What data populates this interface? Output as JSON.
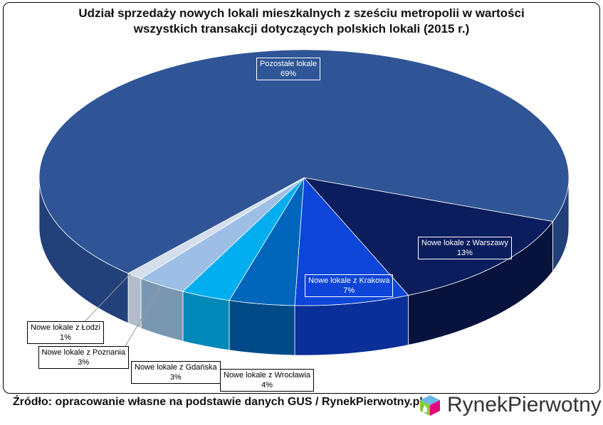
{
  "chart_data": {
    "type": "pie",
    "title_lines": [
      "Udział sprzedaży nowych lokali mieszkalnych z sześciu metropolii w wartości",
      "wszystkich transakcji dotyczących polskich lokali (2015 r.)"
    ],
    "slices": [
      {
        "name": "Nowe lokale z Warszawy",
        "value": 13,
        "label": "13%",
        "color": "#0b1d5c",
        "side": "#07123d",
        "style": "in"
      },
      {
        "name": "Nowe lokale z Krakowa",
        "value": 7,
        "label": "7%",
        "color": "#0d45d8",
        "side": "#0a2f98",
        "style": "in"
      },
      {
        "name": "Nowe lokale z Wrocławia",
        "value": 4,
        "label": "4%",
        "color": "#0066bb",
        "side": "#004a88",
        "style": "out"
      },
      {
        "name": "Nowe lokale z Gdańska",
        "value": 3,
        "label": "3%",
        "color": "#00aeef",
        "side": "#0088b8",
        "style": "out"
      },
      {
        "name": "Nowe lokale z Poznania",
        "value": 3,
        "label": "3%",
        "color": "#9dbfe6",
        "side": "#7a97b2",
        "style": "out"
      },
      {
        "name": "Nowe lokale z Łodzi",
        "value": 1,
        "label": "1%",
        "color": "#d4deec",
        "side": "#b2bccb",
        "style": "out"
      },
      {
        "name": "Pozostałe lokale",
        "value": 69,
        "label": "69%",
        "color": "#2f5597",
        "side": "#22407a",
        "style": "in"
      }
    ]
  },
  "source": "Źródło: opracowanie własne na podstawie danych GUS / RynekPierwotny.pl",
  "logo": {
    "text_a": "Rynek",
    "text_b": "Pierwotny"
  }
}
